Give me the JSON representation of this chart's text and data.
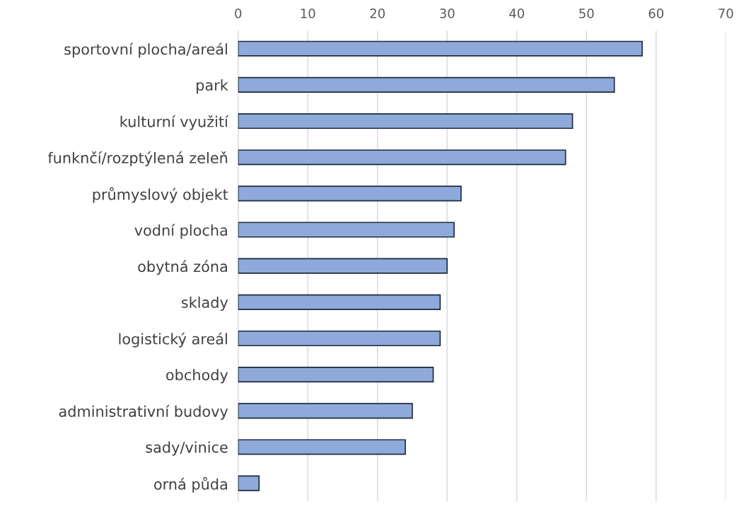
{
  "chart_data": {
    "type": "bar",
    "orientation": "horizontal",
    "categories": [
      "sportovní plocha/areál",
      "park",
      "kulturní využití",
      "funknčí/rozptýlená zeleň",
      "průmyslový objekt",
      "vodní plocha",
      "obytná zóna",
      "sklady",
      "logistický areál",
      "obchody",
      "administrativní budovy",
      "sady/vinice",
      "orná půda"
    ],
    "values": [
      58,
      54,
      48,
      47,
      32,
      31,
      30,
      29,
      29,
      28,
      25,
      24,
      3
    ],
    "color": "#8eaadb",
    "xlim": [
      0,
      70
    ],
    "xticks": [
      0,
      10,
      20,
      30,
      40,
      50,
      60,
      70
    ],
    "grid": "x"
  }
}
